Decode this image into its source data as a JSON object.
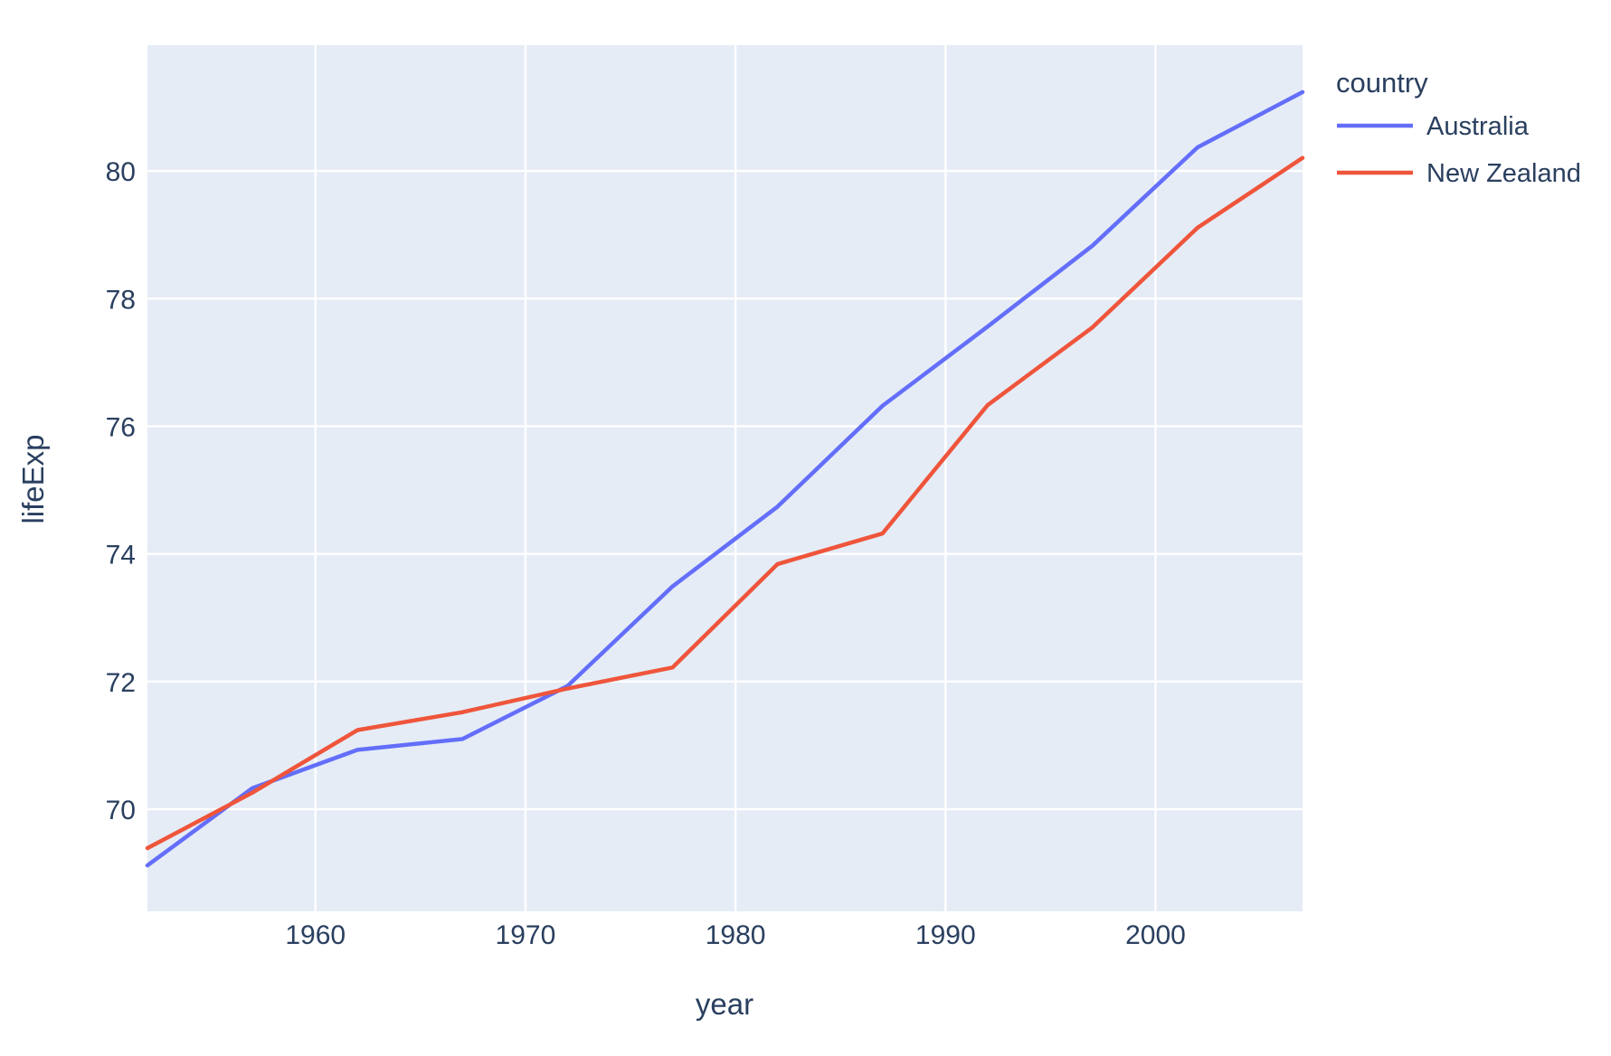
{
  "chart_data": {
    "type": "line",
    "title": "",
    "xlabel": "year",
    "ylabel": "lifeExp",
    "legend_title": "country",
    "legend_position": "top-right-outside",
    "grid": true,
    "x": [
      1952,
      1957,
      1962,
      1967,
      1972,
      1977,
      1982,
      1987,
      1992,
      1997,
      2002,
      2007
    ],
    "series": [
      {
        "name": "Australia",
        "color": "#636EFA",
        "values": [
          69.12,
          70.33,
          70.93,
          71.1,
          71.93,
          73.49,
          74.74,
          76.32,
          77.56,
          78.83,
          80.37,
          81.235
        ]
      },
      {
        "name": "New Zealand",
        "color": "#EF553B",
        "values": [
          69.39,
          70.26,
          71.24,
          71.52,
          71.89,
          72.22,
          73.84,
          74.32,
          76.33,
          77.55,
          79.11,
          80.204
        ]
      }
    ],
    "xlim": [
      1952,
      2007
    ],
    "ylim": [
      68.4,
      81.97
    ],
    "xticks": [
      1960,
      1970,
      1980,
      1990,
      2000
    ],
    "yticks": [
      70,
      72,
      74,
      76,
      78,
      80
    ]
  },
  "style": {
    "plot_bg": "#E5ECF6",
    "paper_bg": "#FFFFFF",
    "grid_color": "#FFFFFF",
    "text_color": "#2A3F5F"
  }
}
